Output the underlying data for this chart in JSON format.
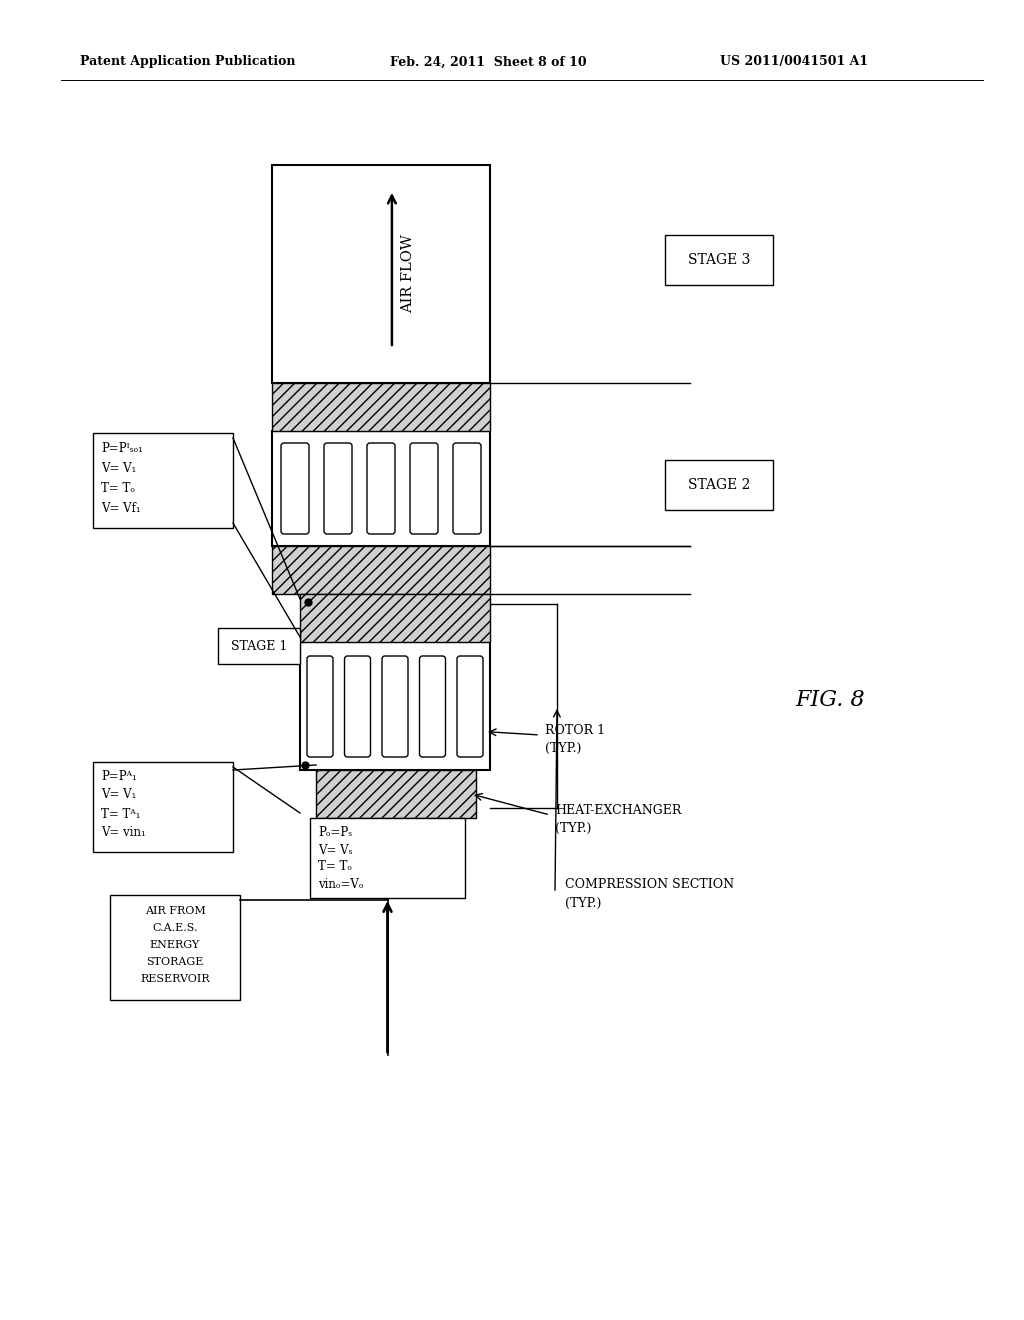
{
  "bg_color": "#ffffff",
  "header_left": "Patent Application Publication",
  "header_center": "Feb. 24, 2011  Sheet 8 of 10",
  "header_right": "US 2011/0041501 A1",
  "fig_label": "FIG. 8",
  "stage3_label": "STAGE 3",
  "stage2_label": "STAGE 2",
  "stage1_label": "STAGE 1",
  "iso_lines": [
    "P=Pᴵₛₒ₁",
    "V= V₁",
    "T= Tₒ",
    "V= Vf₁"
  ],
  "pa_lines": [
    "P=Pᴬ₁",
    "V= V₁",
    "T= Tᴬ₁",
    "V= vin₁"
  ],
  "ps_lines": [
    "Pₒ=Pₛ",
    "V= Vₛ",
    "T= Tₒ",
    "vinₒ=Vₒ"
  ],
  "air_from_lines": [
    "AIR FROM",
    "C.A.E.S.",
    "ENERGY",
    "STORAGE",
    "RESERVOIR"
  ],
  "rotor_label": [
    "ROTOR 1",
    "(TYP.)"
  ],
  "hx_label": [
    "HEAT-EXCHANGER",
    "(TYP.)"
  ],
  "cs_label": [
    "COMPRESSION SECTION",
    "(TYP.)"
  ],
  "airflow_text": "AIR FLOW",
  "fig8_text": "FIG. 8"
}
